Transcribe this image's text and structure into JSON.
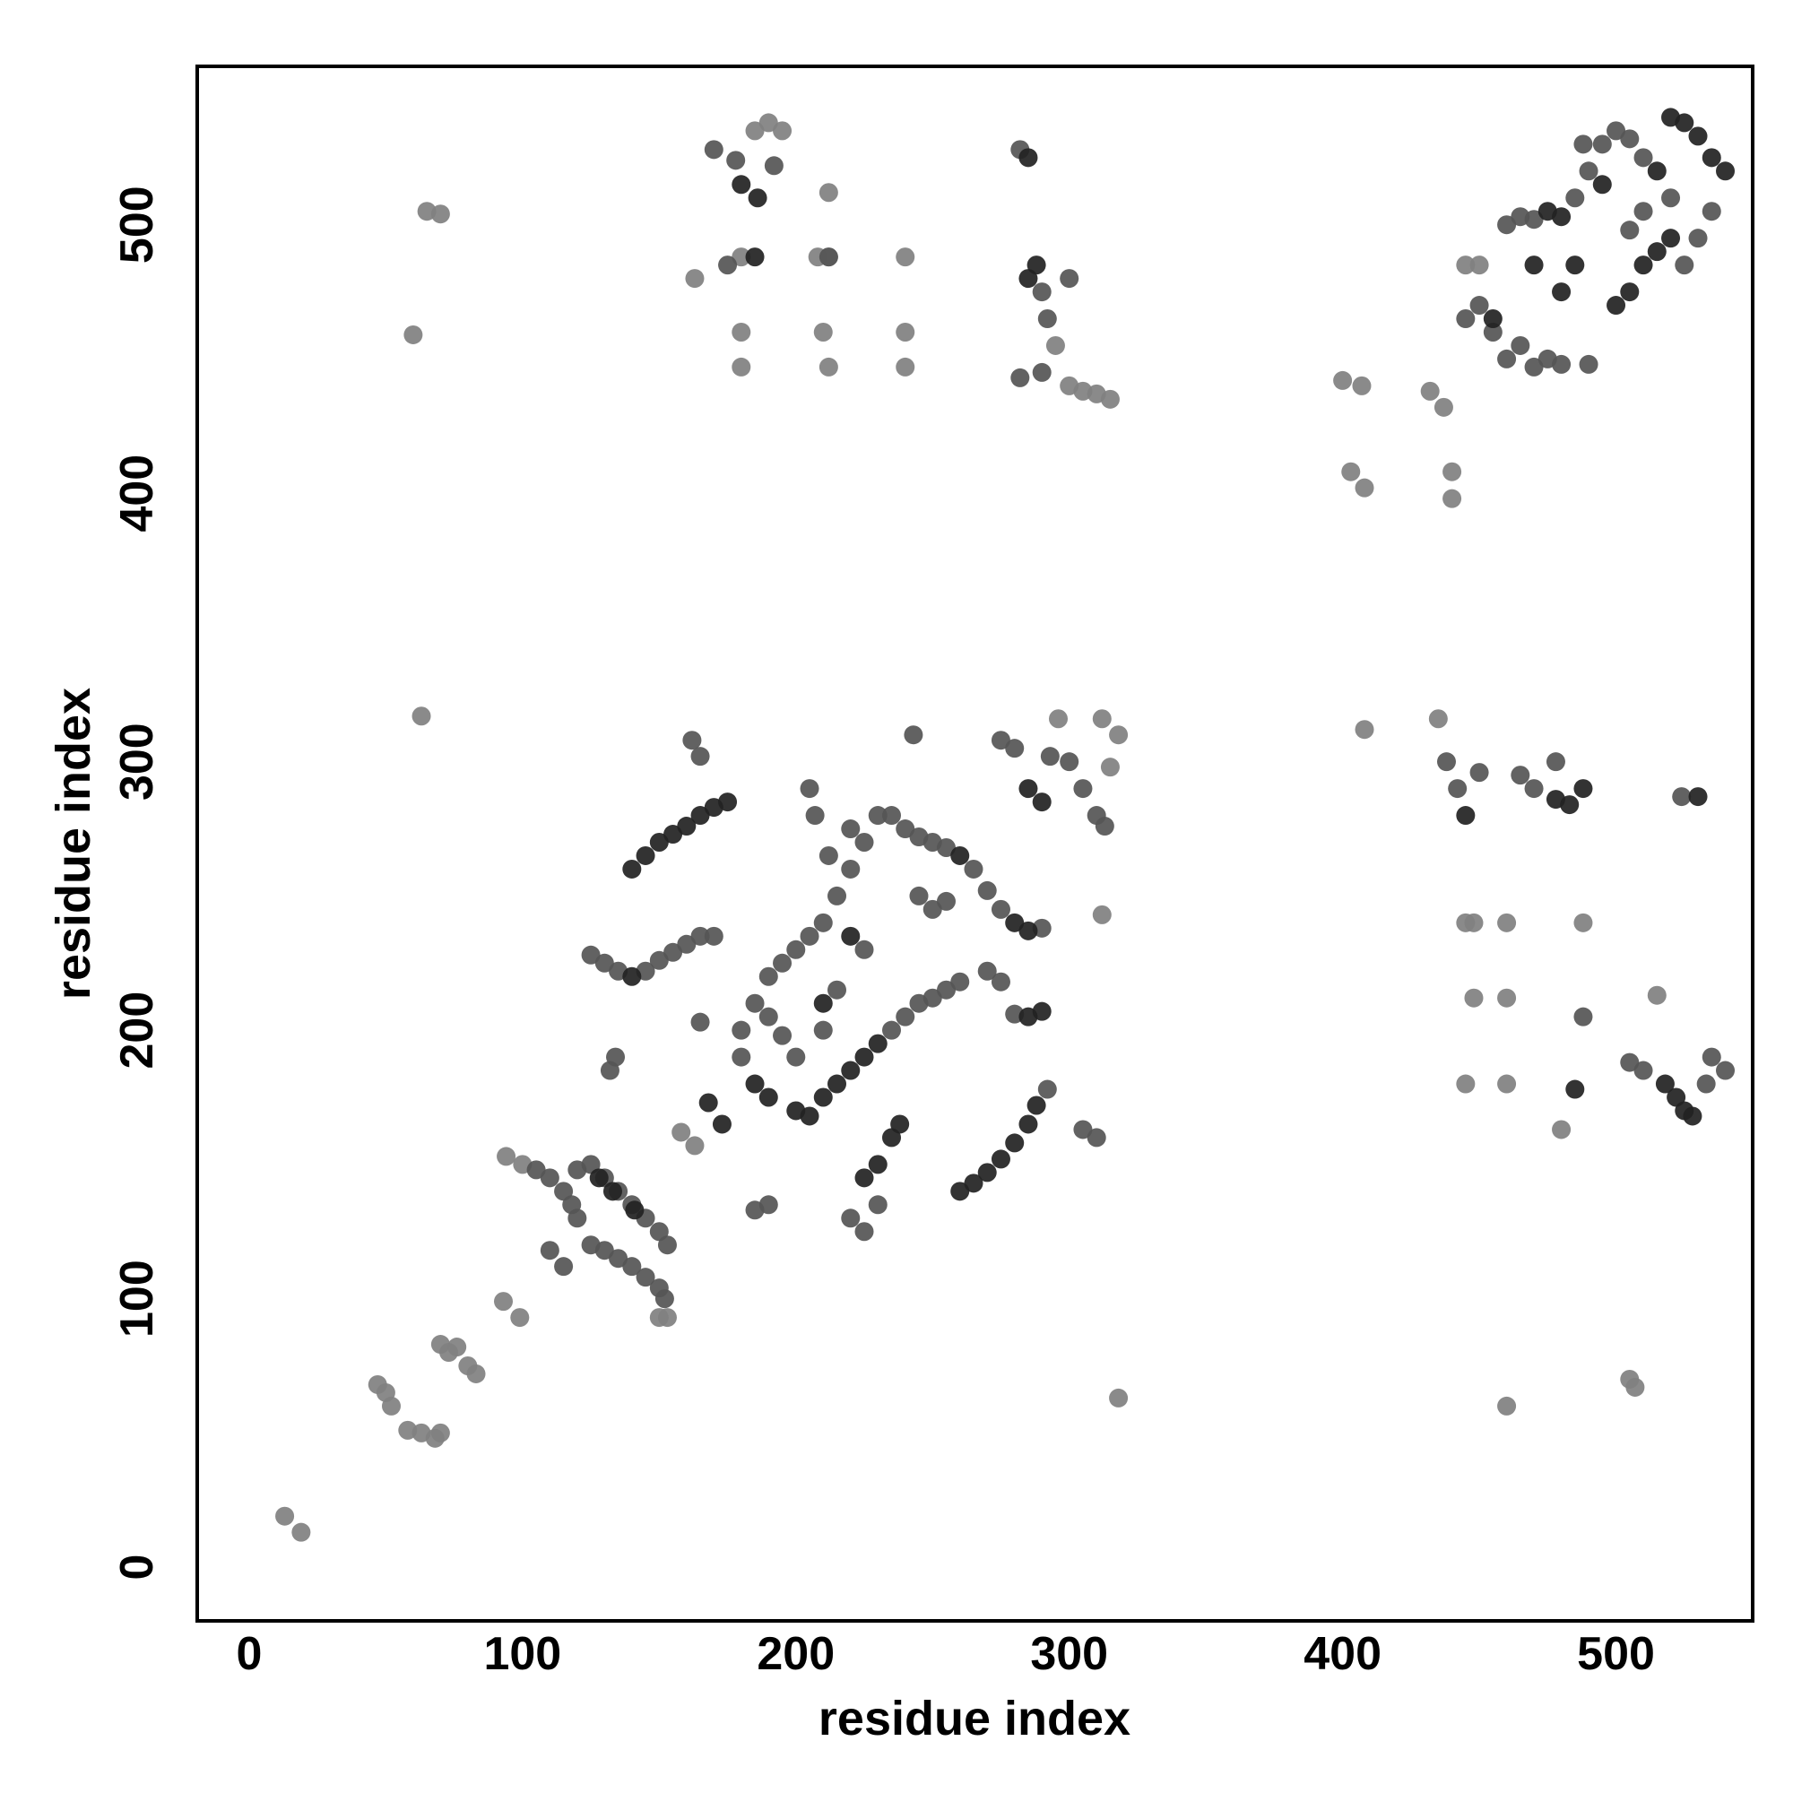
{
  "chart_data": {
    "type": "scatter",
    "xlabel": "residue index",
    "ylabel": "residue index",
    "xlim": [
      -19,
      550
    ],
    "ylim": [
      -20,
      559
    ],
    "xticks": [
      0,
      100,
      200,
      300,
      400,
      500
    ],
    "yticks": [
      0,
      100,
      200,
      300,
      400,
      500
    ],
    "series": [
      {
        "color": "#808080",
        "x": [
          13,
          19,
          47,
          50,
          52,
          58,
          63,
          68,
          70,
          70,
          73,
          76,
          80,
          83,
          93,
          99,
          94,
          100,
          153,
          150,
          158,
          163,
          63,
          60,
          65,
          70,
          163,
          180,
          180,
          180,
          208,
          212,
          210,
          212,
          240,
          240,
          240,
          212,
          312,
          318,
          312,
          296,
          315,
          318,
          400,
          407,
          403,
          408,
          432,
          437,
          440,
          440,
          408,
          435,
          445,
          448,
          460,
          488,
          448,
          460,
          445,
          460,
          480,
          515,
          460,
          505,
          507,
          295,
          300,
          305,
          310,
          315,
          185,
          190,
          195,
          445,
          450
        ],
        "values": [
          19,
          13,
          68,
          65,
          60,
          51,
          50,
          48,
          50,
          83,
          80,
          82,
          75,
          72,
          99,
          93,
          153,
          150,
          93,
          93,
          162,
          157,
          317,
          459,
          505,
          504,
          480,
          488,
          460,
          447,
          488,
          488,
          460,
          447,
          488,
          460,
          447,
          512,
          243,
          310,
          316,
          316,
          298,
          63,
          442,
          440,
          408,
          402,
          438,
          432,
          408,
          398,
          312,
          316,
          240,
          240,
          240,
          240,
          212,
          212,
          180,
          180,
          163,
          213,
          60,
          70,
          67,
          455,
          440,
          438,
          437,
          435,
          535,
          538,
          535,
          485,
          485
        ]
      },
      {
        "color": "#555555",
        "x": [
          105,
          110,
          115,
          118,
          120,
          125,
          130,
          135,
          140,
          145,
          150,
          152,
          120,
          125,
          130,
          135,
          140,
          145,
          150,
          153,
          110,
          115,
          132,
          134,
          125,
          130,
          135,
          145,
          150,
          155,
          160,
          165,
          170,
          162,
          165,
          165,
          180,
          185,
          190,
          195,
          200,
          205,
          210,
          215,
          220,
          225,
          230,
          235,
          240,
          245,
          250,
          255,
          260,
          180,
          190,
          195,
          200,
          210,
          215,
          225,
          190,
          185,
          220,
          225,
          230,
          205,
          207,
          212,
          220,
          235,
          240,
          245,
          250,
          255,
          265,
          270,
          275,
          245,
          250,
          255,
          243,
          270,
          275,
          280,
          290,
          292,
          275,
          280,
          293,
          300,
          305,
          310,
          313,
          305,
          310,
          170,
          178,
          175,
          192,
          212,
          282,
          290,
          292,
          300,
          282,
          290,
          450,
          455,
          460,
          465,
          470,
          475,
          480,
          490,
          445,
          460,
          465,
          470,
          485,
          490,
          495,
          500,
          505,
          510,
          520,
          525,
          530,
          535,
          505,
          510,
          488,
          438,
          442,
          450,
          465,
          470,
          478,
          524,
          488,
          505,
          510,
          533,
          535,
          540
        ],
        "values": [
          148,
          145,
          140,
          135,
          130,
          120,
          118,
          115,
          112,
          108,
          104,
          100,
          148,
          150,
          145,
          140,
          135,
          130,
          125,
          120,
          118,
          112,
          185,
          190,
          228,
          225,
          222,
          222,
          226,
          229,
          232,
          235,
          235,
          308,
          302,
          203,
          200,
          210,
          220,
          225,
          230,
          235,
          240,
          250,
          260,
          270,
          280,
          200,
          205,
          210,
          212,
          215,
          218,
          190,
          205,
          198,
          190,
          200,
          215,
          230,
          135,
          133,
          130,
          125,
          135,
          290,
          280,
          265,
          275,
          280,
          275,
          272,
          270,
          268,
          260,
          252,
          245,
          250,
          245,
          248,
          310,
          222,
          218,
          206,
          238,
          178,
          308,
          305,
          302,
          300,
          290,
          280,
          276,
          163,
          160,
          528,
          524,
          485,
          522,
          488,
          528,
          475,
          465,
          480,
          443,
          445,
          470,
          460,
          450,
          455,
          447,
          450,
          448,
          448,
          465,
          500,
          503,
          502,
          510,
          520,
          530,
          535,
          532,
          525,
          510,
          485,
          495,
          505,
          498,
          505,
          530,
          300,
          290,
          296,
          295,
          290,
          300,
          287,
          205,
          188,
          185,
          180,
          190,
          185
        ]
      },
      {
        "color": "#222222",
        "x": [
          140,
          145,
          150,
          155,
          160,
          165,
          170,
          175,
          133,
          141,
          128,
          140,
          168,
          173,
          185,
          190,
          200,
          205,
          210,
          215,
          220,
          225,
          230,
          225,
          230,
          235,
          238,
          260,
          265,
          270,
          275,
          280,
          285,
          288,
          285,
          290,
          260,
          280,
          285,
          220,
          210,
          285,
          290,
          285,
          288,
          285,
          180,
          186,
          185,
          475,
          480,
          500,
          505,
          510,
          515,
          515,
          520,
          525,
          530,
          535,
          540,
          520,
          470,
          480,
          485,
          495,
          455,
          445,
          478,
          483,
          488,
          530,
          485,
          518,
          522,
          525,
          528
        ],
        "values": [
          260,
          265,
          270,
          273,
          276,
          280,
          283,
          285,
          140,
          133,
          145,
          220,
          173,
          165,
          180,
          175,
          170,
          168,
          175,
          180,
          185,
          190,
          195,
          145,
          150,
          160,
          165,
          140,
          143,
          147,
          152,
          158,
          165,
          172,
          205,
          207,
          265,
          240,
          237,
          235,
          210,
          290,
          285,
          480,
          485,
          525,
          515,
          510,
          488,
          505,
          503,
          470,
          475,
          485,
          490,
          520,
          540,
          538,
          533,
          525,
          520,
          495,
          485,
          475,
          485,
          515,
          465,
          280,
          286,
          284,
          290,
          287,
          178,
          180,
          175,
          170,
          168
        ]
      }
    ]
  }
}
